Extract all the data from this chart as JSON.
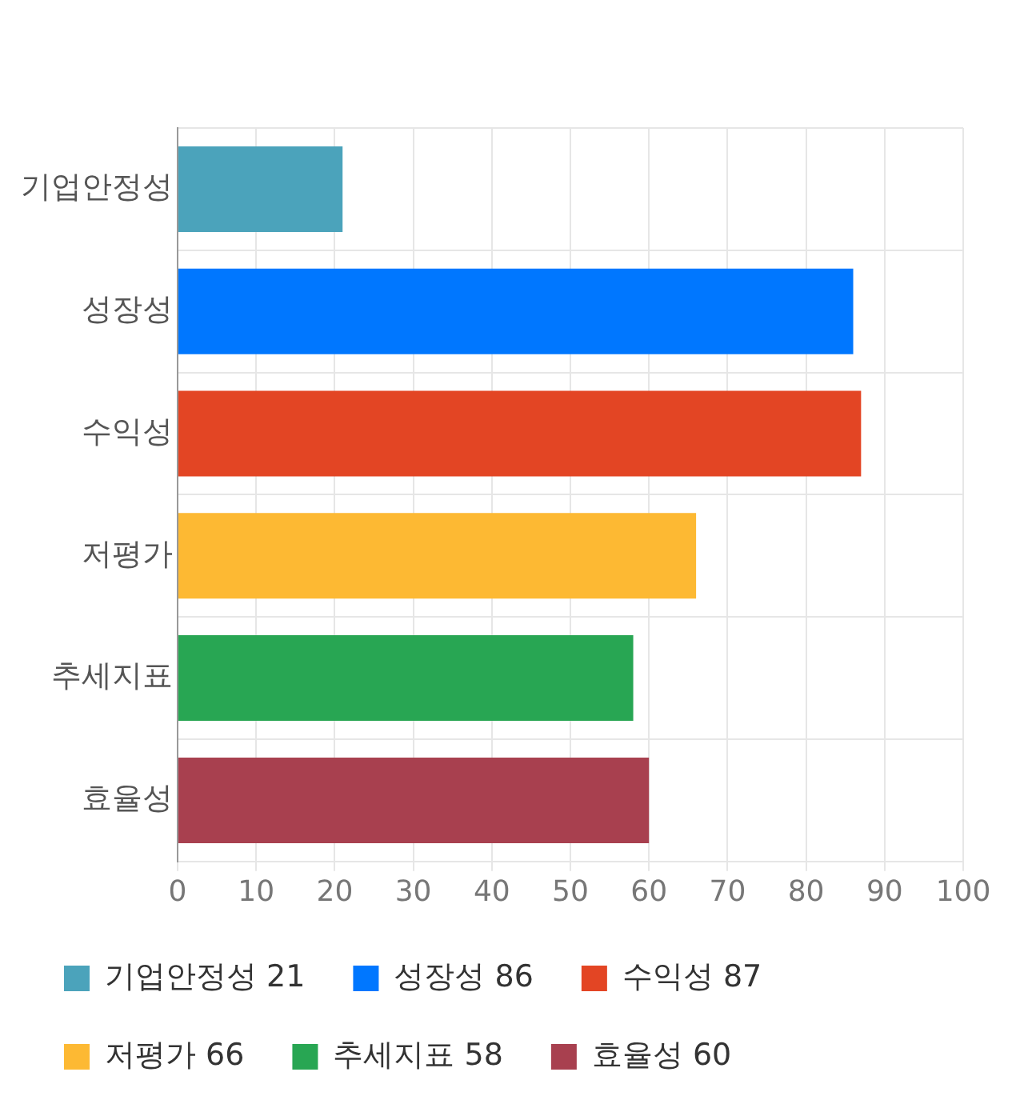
{
  "chart_data": {
    "type": "bar",
    "orientation": "horizontal",
    "stacked": true,
    "categories": [
      "기업안정성",
      "성장성",
      "수익성",
      "저평가",
      "추세지표",
      "효율성"
    ],
    "series": [
      {
        "name": "기업안정성 21",
        "color": "#4ba3bb",
        "values": [
          21,
          null,
          null,
          null,
          null,
          null
        ]
      },
      {
        "name": "성장성 86",
        "color": "#0077ff",
        "values": [
          null,
          86,
          null,
          null,
          null,
          null
        ]
      },
      {
        "name": "수익성 87",
        "color": "#e34524",
        "values": [
          null,
          null,
          87,
          null,
          null,
          null
        ]
      },
      {
        "name": "저평가 66",
        "color": "#fdb933",
        "values": [
          null,
          null,
          null,
          66,
          null,
          null
        ]
      },
      {
        "name": "추세지표 58",
        "color": "#28a653",
        "values": [
          null,
          null,
          null,
          null,
          58,
          null
        ]
      },
      {
        "name": "효율성 60",
        "color": "#a8404f",
        "values": [
          null,
          null,
          null,
          null,
          null,
          60
        ]
      }
    ],
    "xlim": [
      0,
      100
    ],
    "xticks": [
      0,
      10,
      20,
      30,
      40,
      50,
      60,
      70,
      80,
      90,
      100
    ],
    "grid": true,
    "legend": "bottom"
  }
}
